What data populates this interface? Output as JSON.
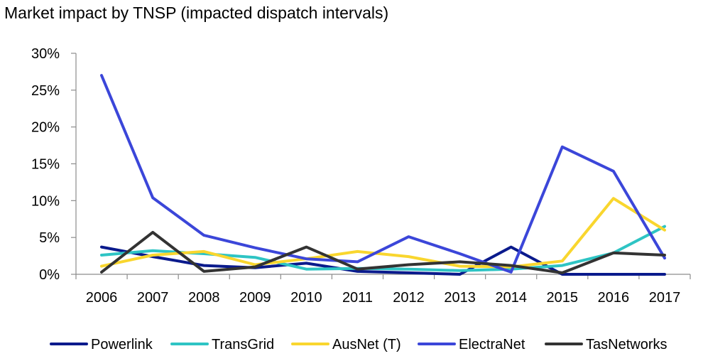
{
  "chart_data": {
    "type": "line",
    "title": "Market impact by TNSP (impacted dispatch intervals)",
    "xlabel": "",
    "ylabel": "",
    "categories": [
      "2006",
      "2007",
      "2008",
      "2009",
      "2010",
      "2011",
      "2012",
      "2013",
      "2014",
      "2015",
      "2016",
      "2017"
    ],
    "ylim": [
      0,
      30
    ],
    "yticks": [
      0,
      5,
      10,
      15,
      20,
      25,
      30
    ],
    "ytick_labels": [
      "0%",
      "5%",
      "10%",
      "15%",
      "20%",
      "25%",
      "30%"
    ],
    "grid": false,
    "legend_position": "bottom",
    "series": [
      {
        "name": "Powerlink",
        "color": "#0a1a8c",
        "values": [
          3.7,
          2.4,
          1.2,
          0.9,
          1.5,
          0.4,
          0.2,
          0.0,
          3.7,
          0.0,
          0.0,
          0.0
        ]
      },
      {
        "name": "TransGrid",
        "color": "#2ec4c4",
        "values": [
          2.6,
          3.2,
          2.8,
          2.3,
          0.7,
          0.8,
          0.7,
          0.5,
          0.7,
          1.2,
          2.9,
          6.5
        ]
      },
      {
        "name": "AusNet (T)",
        "color": "#f9d62e",
        "values": [
          1.1,
          2.6,
          3.1,
          1.3,
          2.1,
          3.1,
          2.4,
          1.1,
          1.0,
          1.8,
          10.3,
          6.0
        ]
      },
      {
        "name": "ElectraNet",
        "color": "#3b46d9",
        "values": [
          27.0,
          10.4,
          5.3,
          3.6,
          2.1,
          1.7,
          5.1,
          2.8,
          0.3,
          17.3,
          14.0,
          2.2
        ]
      },
      {
        "name": "TasNetworks",
        "color": "#333333",
        "values": [
          0.3,
          5.7,
          0.4,
          1.0,
          3.7,
          0.7,
          1.3,
          1.7,
          1.2,
          0.2,
          2.9,
          2.6
        ]
      }
    ]
  }
}
